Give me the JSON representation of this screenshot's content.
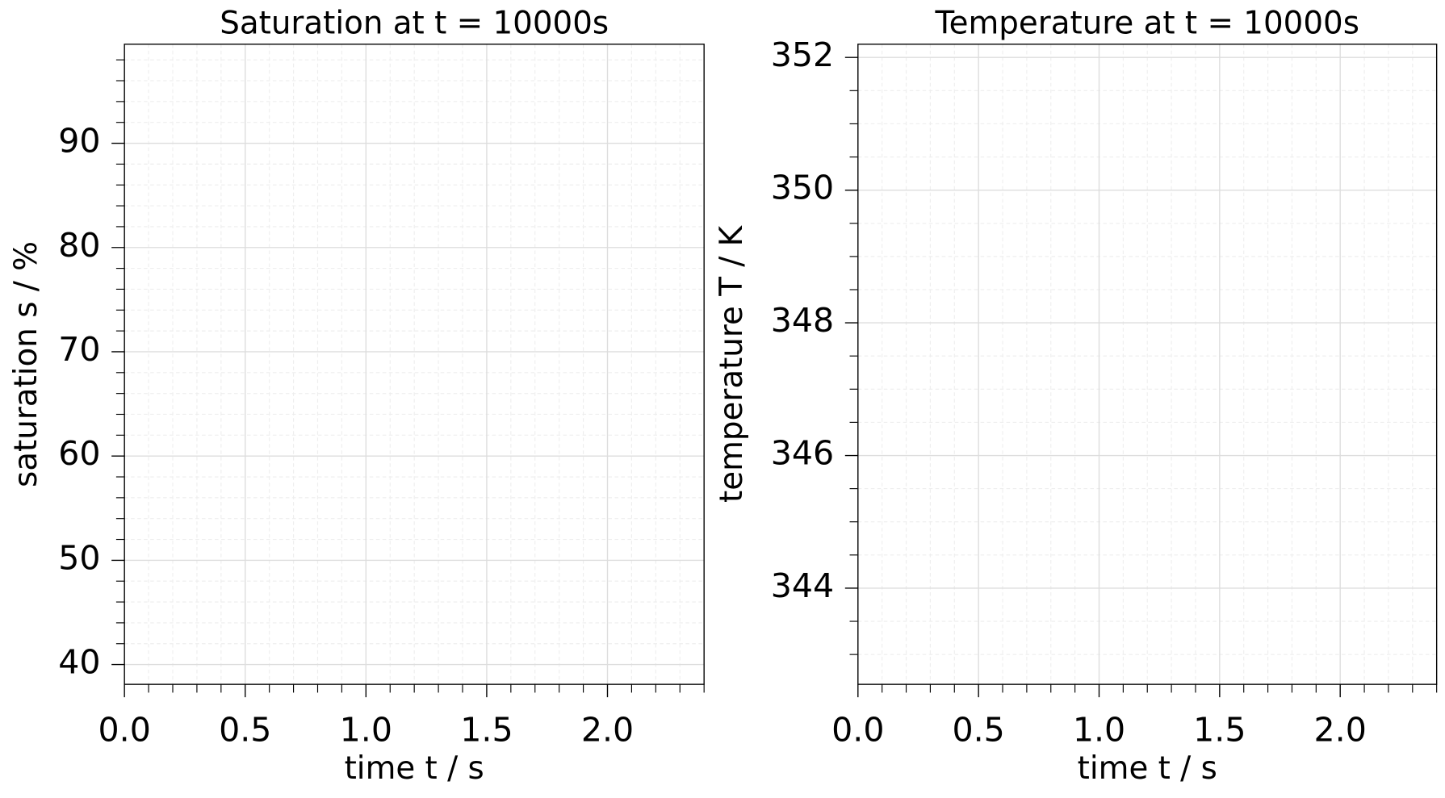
{
  "chart_data": [
    {
      "type": "line",
      "title": "Saturation at t = 10000s",
      "x_label": "time t / s",
      "y_label": "saturation s / %",
      "series": [],
      "xlim": [
        0,
        2.4
      ],
      "ylim": [
        38.1,
        99.5
      ],
      "xticks": [
        {
          "value": 0,
          "label": "0.0"
        },
        0.5,
        {
          "value": 1,
          "label": "1.0"
        },
        1.5,
        {
          "value": 2,
          "label": "2.0"
        }
      ],
      "yticks": [
        40,
        50,
        60,
        70,
        80,
        90
      ],
      "xticks_minor": [
        0.1,
        0.2,
        0.3,
        0.4,
        0.6,
        0.7,
        0.8,
        0.9,
        1.1,
        1.2,
        1.3,
        1.4,
        1.6,
        1.7,
        1.8,
        1.9,
        2.1,
        2.2,
        2.3,
        2.4
      ],
      "yticks_minor": [
        42,
        44,
        46,
        48,
        52,
        54,
        56,
        58,
        62,
        64,
        66,
        68,
        72,
        74,
        76,
        78,
        82,
        84,
        86,
        88,
        92,
        94,
        96,
        98
      ],
      "grid": true
    },
    {
      "type": "line",
      "title": "Temperature at t = 10000s",
      "x_label": "time t / s",
      "y_label": "temperature T / K",
      "series": [],
      "xlim": [
        0,
        2.4
      ],
      "ylim": [
        342.55,
        352.2
      ],
      "xticks": [
        {
          "value": 0,
          "label": "0.0"
        },
        0.5,
        {
          "value": 1,
          "label": "1.0"
        },
        1.5,
        {
          "value": 2,
          "label": "2.0"
        }
      ],
      "yticks": [
        344,
        346,
        348,
        350,
        352
      ],
      "xticks_minor": [
        0.1,
        0.2,
        0.3,
        0.4,
        0.6,
        0.7,
        0.8,
        0.9,
        1.1,
        1.2,
        1.3,
        1.4,
        1.6,
        1.7,
        1.8,
        1.9,
        2.1,
        2.2,
        2.3,
        2.4
      ],
      "yticks_minor": [
        343,
        343.5,
        344.5,
        345,
        345.5,
        346.5,
        347,
        347.5,
        348.5,
        349,
        349.5,
        350.5,
        351,
        351.5
      ],
      "grid": true
    }
  ]
}
